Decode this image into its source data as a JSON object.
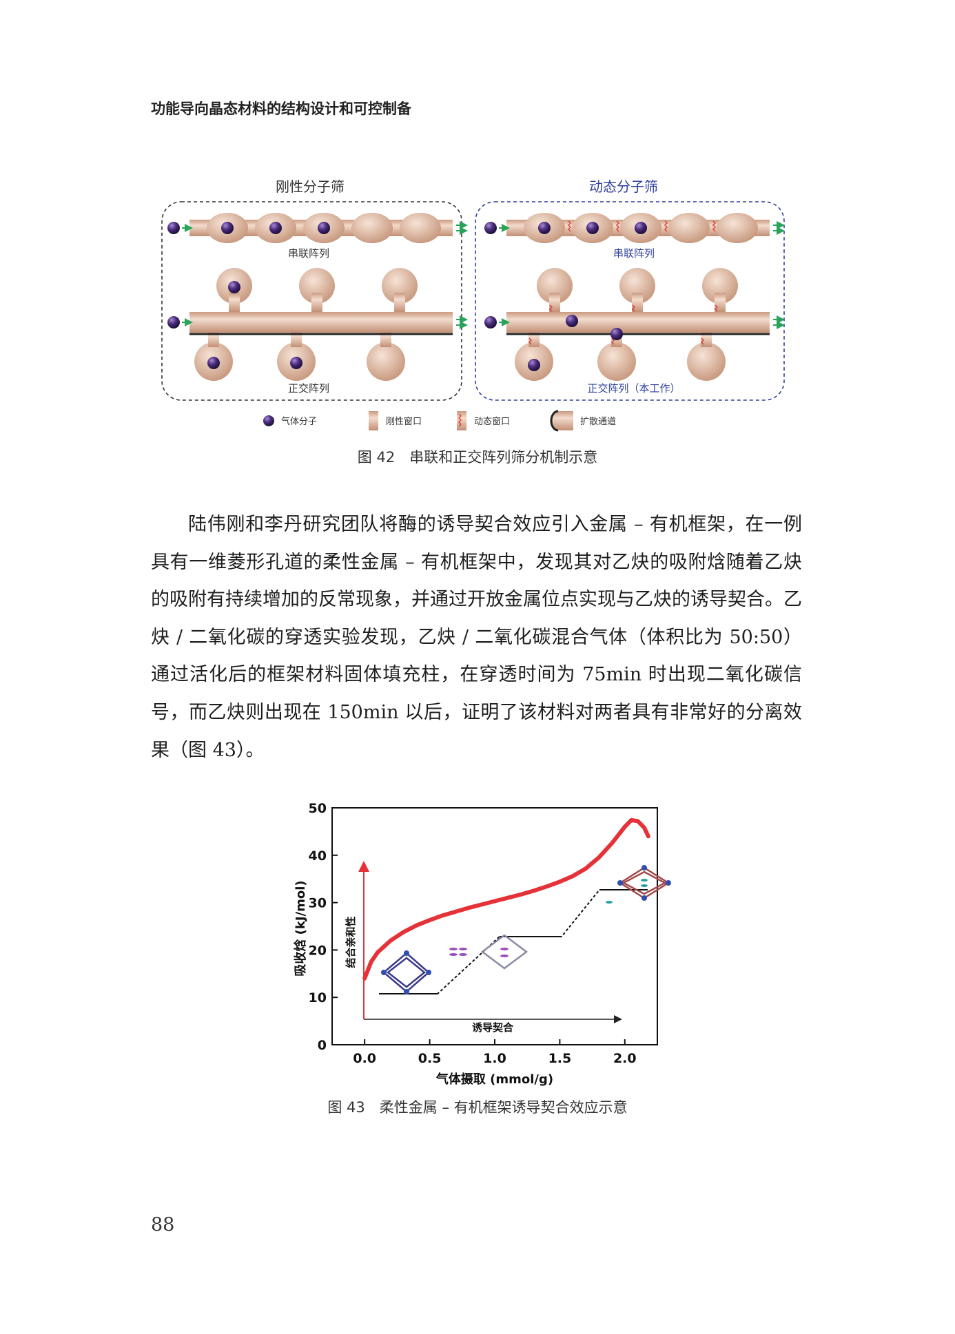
{
  "running_head": "功能导向晶态材料的结构设计和可控制备",
  "figure42": {
    "panel_left_title": "刚性分子筛",
    "panel_right_title": "动态分子筛",
    "left_series_label": "串联阵列",
    "left_ortho_label": "正交阵列",
    "right_series_label": "串联阵列",
    "right_ortho_label": "正交阵列（本工作）",
    "legend": {
      "gas": "气体分子",
      "rigid": "刚性窗口",
      "dynamic": "动态窗口",
      "channel": "扩散通道"
    },
    "caption": "图 42　串联和正交阵列筛分机制示意",
    "colors": {
      "pipe": "#ddb8a2",
      "molecule": "#4a2d7c",
      "dynamic_title": "#2f3f9e",
      "spring": "#d9433a",
      "arrow": "#2aa35a"
    }
  },
  "paragraph": "陆伟刚和李丹研究团队将酶的诱导契合效应引入金属 – 有机框架，在一例具有一维菱形孔道的柔性金属 – 有机框架中，发现其对乙炔的吸附焓随着乙炔的吸附有持续增加的反常现象，并通过开放金属位点实现与乙炔的诱导契合。乙炔 / 二氧化碳的穿透实验发现，乙炔 / 二氧化碳混合气体（体积比为 50:50）通过活化后的框架材料固体填充柱，在穿透时间为 75min 时出现二氧化碳信号，而乙炔则出现在 150min 以后，证明了该材料对两者具有非常好的分离效果（图 43）。",
  "figure43": {
    "caption": "图 43　柔性金属 – 有机框架诱导契合效应示意",
    "inset_y_label": "结合亲和性",
    "inset_x_label": "诱导契合",
    "colors": {
      "curve": "#e53238",
      "arrow": "#e53238"
    }
  },
  "chart_data": {
    "type": "line",
    "title": "",
    "xlabel": "气体摄取 (mmol/g)",
    "ylabel": "吸收焓 (kJ/mol)",
    "xlim": [
      -0.25,
      2.25
    ],
    "ylim": [
      0,
      50
    ],
    "xticks": [
      "0.0",
      "0.5",
      "1.0",
      "1.5",
      "2.0"
    ],
    "yticks": [
      "0",
      "10",
      "20",
      "30",
      "40",
      "50"
    ],
    "grid": false,
    "series": [
      {
        "name": "",
        "x": [
          0.0,
          0.05,
          0.1,
          0.2,
          0.3,
          0.4,
          0.5,
          0.6,
          0.7,
          0.8,
          0.9,
          1.0,
          1.1,
          1.2,
          1.3,
          1.4,
          1.5,
          1.6,
          1.7,
          1.8,
          1.9,
          2.0,
          2.05,
          2.1,
          2.15,
          2.18
        ],
        "y": [
          14.0,
          17.5,
          19.5,
          22.0,
          23.8,
          25.2,
          26.3,
          27.3,
          28.1,
          28.9,
          29.6,
          30.3,
          31.0,
          31.7,
          32.5,
          33.4,
          34.4,
          35.6,
          37.2,
          39.5,
          42.5,
          46.0,
          47.4,
          47.2,
          45.8,
          44.0
        ]
      }
    ]
  },
  "page_number": "88"
}
